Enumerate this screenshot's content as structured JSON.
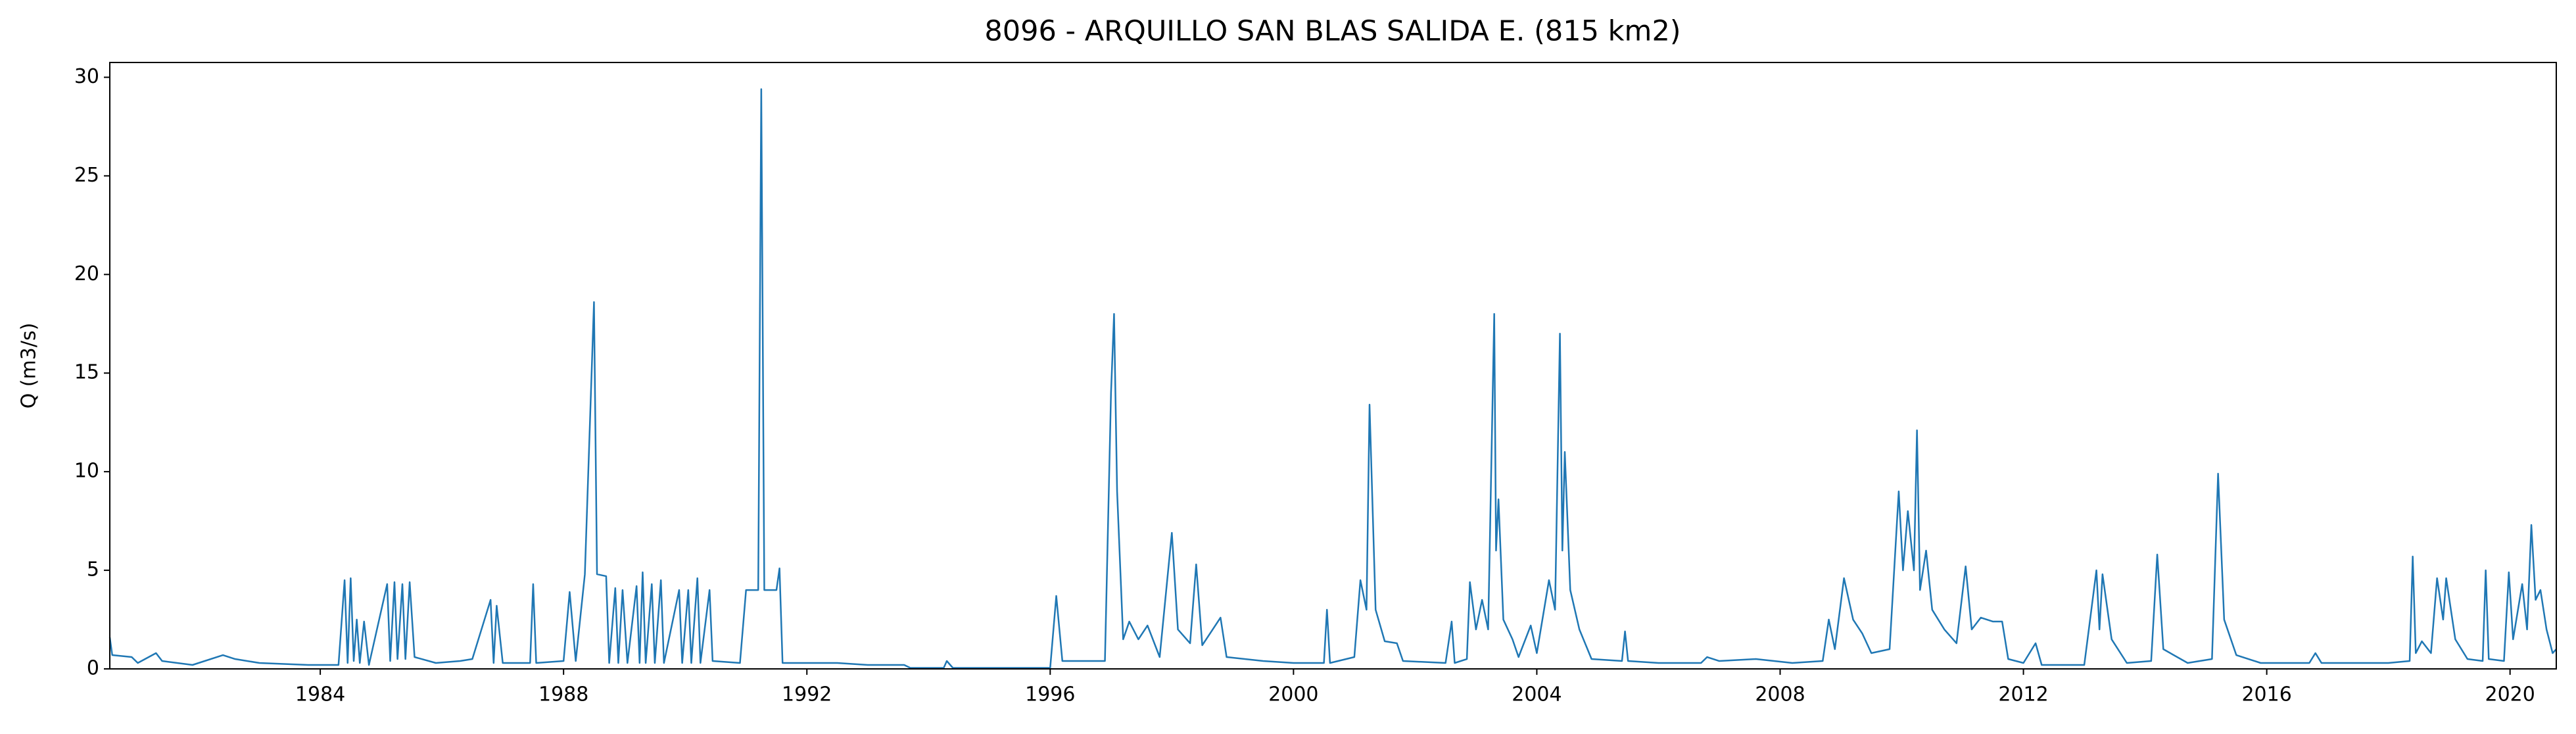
{
  "chart_data": {
    "type": "line",
    "title": "8096 - ARQUILLO SAN BLAS SALIDA E. (815 km2)",
    "y_label": "Q (m3/s)",
    "color": "#1f77b4",
    "xlim": [
      1980.54,
      2020.76
    ],
    "xticks": [
      1984,
      1988,
      1992,
      1996,
      2000,
      2004,
      2008,
      2012,
      2016,
      2020
    ],
    "ylim": [
      0,
      30.75
    ],
    "yticks": [
      0,
      5,
      10,
      15,
      20,
      25,
      30
    ],
    "grid": false,
    "x": [
      1980.54,
      1980.58,
      1980.9,
      1981.0,
      1981.3,
      1981.4,
      1981.9,
      1982.4,
      1982.6,
      1983.0,
      1983.8,
      1984.3,
      1984.4,
      1984.45,
      1984.5,
      1984.55,
      1984.6,
      1984.65,
      1984.72,
      1984.8,
      1985.1,
      1985.15,
      1985.22,
      1985.27,
      1985.35,
      1985.4,
      1985.47,
      1985.55,
      1985.9,
      1986.3,
      1986.5,
      1986.8,
      1986.85,
      1986.9,
      1987.0,
      1987.45,
      1987.5,
      1987.55,
      1988.0,
      1988.1,
      1988.2,
      1988.35,
      1988.5,
      1988.55,
      1988.7,
      1988.75,
      1988.85,
      1988.9,
      1988.97,
      1989.05,
      1989.2,
      1989.25,
      1989.3,
      1989.35,
      1989.45,
      1989.5,
      1989.6,
      1989.65,
      1989.9,
      1989.95,
      1990.05,
      1990.1,
      1990.2,
      1990.25,
      1990.4,
      1990.45,
      1990.9,
      1991.0,
      1991.2,
      1991.25,
      1991.3,
      1991.5,
      1991.55,
      1991.6,
      1992.5,
      1993.0,
      1993.6,
      1993.7,
      1994.25,
      1994.3,
      1994.4,
      1996.0,
      1996.1,
      1996.2,
      1996.9,
      1997.0,
      1997.05,
      1997.1,
      1997.2,
      1997.3,
      1997.45,
      1997.6,
      1997.8,
      1998.0,
      1998.1,
      1998.3,
      1998.4,
      1998.5,
      1998.8,
      1998.9,
      1999.5,
      2000.0,
      2000.5,
      2000.55,
      2000.6,
      2001.0,
      2001.1,
      2001.2,
      2001.25,
      2001.35,
      2001.5,
      2001.7,
      2001.8,
      2002.5,
      2002.6,
      2002.65,
      2002.85,
      2002.9,
      2003.0,
      2003.1,
      2003.2,
      2003.3,
      2003.33,
      2003.37,
      2003.45,
      2003.6,
      2003.7,
      2003.9,
      2004.0,
      2004.2,
      2004.3,
      2004.38,
      2004.42,
      2004.46,
      2004.55,
      2004.7,
      2004.9,
      2005.4,
      2005.45,
      2005.5,
      2006.0,
      2006.7,
      2006.8,
      2007.0,
      2007.6,
      2008.2,
      2008.7,
      2008.8,
      2008.9,
      2009.05,
      2009.2,
      2009.35,
      2009.5,
      2009.8,
      2009.95,
      2010.02,
      2010.1,
      2010.2,
      2010.25,
      2010.3,
      2010.4,
      2010.5,
      2010.7,
      2010.9,
      2011.05,
      2011.15,
      2011.3,
      2011.5,
      2011.65,
      2011.75,
      2012.0,
      2012.2,
      2012.3,
      2013.0,
      2013.2,
      2013.25,
      2013.3,
      2013.45,
      2013.7,
      2014.1,
      2014.2,
      2014.3,
      2014.7,
      2015.1,
      2015.2,
      2015.3,
      2015.5,
      2015.9,
      2016.7,
      2016.8,
      2016.9,
      2018.0,
      2018.35,
      2018.4,
      2018.45,
      2018.55,
      2018.7,
      2018.8,
      2018.9,
      2018.95,
      2019.1,
      2019.3,
      2019.55,
      2019.6,
      2019.65,
      2019.9,
      2019.98,
      2020.05,
      2020.2,
      2020.28,
      2020.35,
      2020.42,
      2020.5,
      2020.6,
      2020.7,
      2020.76
    ],
    "values": [
      1.6,
      0.7,
      0.6,
      0.3,
      0.8,
      0.4,
      0.2,
      0.7,
      0.5,
      0.3,
      0.2,
      0.2,
      4.5,
      0.3,
      4.6,
      0.4,
      2.5,
      0.3,
      2.4,
      0.2,
      4.3,
      0.4,
      4.4,
      0.5,
      4.3,
      0.5,
      4.4,
      0.6,
      0.3,
      0.4,
      0.5,
      3.5,
      0.3,
      3.2,
      0.3,
      0.3,
      4.3,
      0.3,
      0.4,
      3.9,
      0.4,
      4.8,
      18.6,
      4.8,
      4.7,
      0.3,
      4.1,
      0.3,
      4.0,
      0.3,
      4.2,
      0.3,
      4.9,
      0.3,
      4.3,
      0.3,
      4.5,
      0.3,
      4.0,
      0.3,
      4.0,
      0.3,
      4.6,
      0.3,
      4.0,
      0.4,
      0.3,
      4.0,
      4.0,
      29.4,
      4.0,
      4.0,
      5.1,
      0.3,
      0.3,
      0.2,
      0.2,
      0.05,
      0.05,
      0.4,
      0.05,
      0.05,
      3.7,
      0.4,
      0.4,
      14,
      18,
      9,
      1.5,
      2.4,
      1.5,
      2.2,
      0.6,
      6.9,
      2,
      1.3,
      5.3,
      1.2,
      2.6,
      0.6,
      0.4,
      0.3,
      0.3,
      3.0,
      0.3,
      0.6,
      4.5,
      3,
      13.4,
      3,
      1.4,
      1.3,
      0.4,
      0.3,
      2.4,
      0.3,
      0.5,
      4.4,
      2,
      3.5,
      2,
      18,
      6,
      8.6,
      2.5,
      1.5,
      0.6,
      2.2,
      0.8,
      4.5,
      3,
      17,
      6,
      11,
      4,
      2,
      0.5,
      0.4,
      1.9,
      0.4,
      0.3,
      0.3,
      0.6,
      0.4,
      0.5,
      0.3,
      0.4,
      2.5,
      1,
      4.6,
      2.5,
      1.8,
      0.8,
      1.0,
      9,
      5,
      8,
      5,
      12.1,
      4,
      6,
      3,
      2,
      1.3,
      5.2,
      2,
      2.6,
      2.4,
      2.4,
      0.5,
      0.3,
      1.3,
      0.2,
      0.2,
      5.0,
      2,
      4.8,
      1.5,
      0.3,
      0.4,
      5.8,
      1,
      0.3,
      0.5,
      9.9,
      2.5,
      0.7,
      0.3,
      0.3,
      0.8,
      0.3,
      0.3,
      0.4,
      5.7,
      0.8,
      1.4,
      0.8,
      4.6,
      2.5,
      4.6,
      1.5,
      0.5,
      0.4,
      5.0,
      0.5,
      0.4,
      4.9,
      1.5,
      4.3,
      2,
      7.3,
      3.5,
      4,
      2,
      0.8,
      1
    ]
  }
}
